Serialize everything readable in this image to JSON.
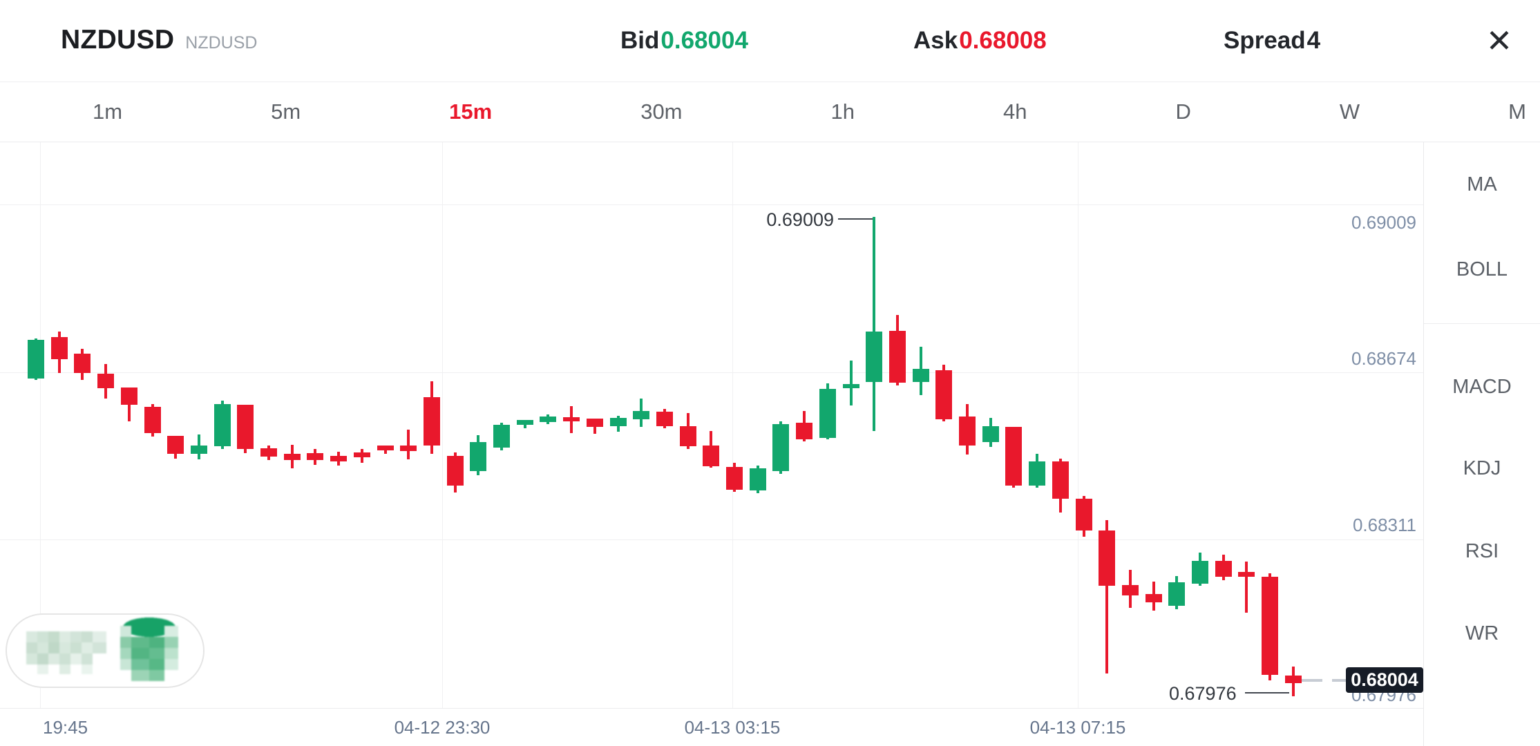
{
  "header": {
    "symbol": "NZDUSD",
    "symbol_secondary": "NZDUSD",
    "bid_label": "Bid",
    "bid_value": "0.68004",
    "ask_label": "Ask",
    "ask_value": "0.68008",
    "spread_label": "Spread",
    "spread_value": "4",
    "close_icon": "✕"
  },
  "timeframe_tabs": {
    "items": [
      "1m",
      "5m",
      "15m",
      "30m",
      "1h",
      "4h",
      "D",
      "W",
      "M"
    ],
    "active": "15m"
  },
  "indicator_panel": {
    "main_indicators": [
      "MA",
      "BOLL"
    ],
    "sub_indicators": [
      "MACD",
      "KDJ",
      "RSI",
      "WR"
    ]
  },
  "chart_data": {
    "type": "candlestick",
    "symbol": "NZDUSD",
    "interval": "15m",
    "up_color": "#12A76D",
    "down_color": "#E9182C",
    "y_axis_labels": [
      "0.69009",
      "0.68674",
      "0.68311",
      "0.67976"
    ],
    "x_axis_labels": [
      "19:45",
      "04-12 23:30",
      "04-13 03:15",
      "04-13 07:15"
    ],
    "high_annotation": "0.69009",
    "low_annotation": "0.67976",
    "current_price_tag": "0.68004",
    "candles": [
      [
        0.68661,
        0.68747,
        0.68658,
        0.68744
      ],
      [
        0.6875,
        0.68762,
        0.68673,
        0.68702
      ],
      [
        0.68714,
        0.68725,
        0.68658,
        0.68673
      ],
      [
        0.68671,
        0.68692,
        0.68617,
        0.6864
      ],
      [
        0.68641,
        0.68641,
        0.68568,
        0.68604
      ],
      [
        0.686,
        0.68606,
        0.68536,
        0.68543
      ],
      [
        0.68537,
        0.68537,
        0.68488,
        0.68498
      ],
      [
        0.68498,
        0.6854,
        0.68487,
        0.68516
      ],
      [
        0.68515,
        0.68613,
        0.68509,
        0.68606
      ],
      [
        0.68604,
        0.68604,
        0.685,
        0.68509
      ],
      [
        0.6851,
        0.68516,
        0.68485,
        0.68492
      ],
      [
        0.68498,
        0.68518,
        0.68467,
        0.68485
      ],
      [
        0.685,
        0.68509,
        0.68475,
        0.68485
      ],
      [
        0.68494,
        0.68503,
        0.68473,
        0.68482
      ],
      [
        0.68501,
        0.68509,
        0.68479,
        0.68491
      ],
      [
        0.68516,
        0.68516,
        0.68498,
        0.68506
      ],
      [
        0.68516,
        0.6855,
        0.68487,
        0.68504
      ],
      [
        0.6862,
        0.68655,
        0.68498,
        0.68516
      ],
      [
        0.68494,
        0.68501,
        0.68415,
        0.6843
      ],
      [
        0.68461,
        0.68539,
        0.68452,
        0.68524
      ],
      [
        0.68512,
        0.68565,
        0.68506,
        0.68561
      ],
      [
        0.68561,
        0.68572,
        0.68553,
        0.68572
      ],
      [
        0.68567,
        0.68583,
        0.68563,
        0.68579
      ],
      [
        0.68577,
        0.68601,
        0.68543,
        0.6857
      ],
      [
        0.68574,
        0.68574,
        0.68542,
        0.68556
      ],
      [
        0.68558,
        0.6858,
        0.68546,
        0.68576
      ],
      [
        0.68573,
        0.68617,
        0.68556,
        0.68591
      ],
      [
        0.68589,
        0.68595,
        0.68553,
        0.68558
      ],
      [
        0.68558,
        0.68587,
        0.68509,
        0.68515
      ],
      [
        0.68516,
        0.68548,
        0.68469,
        0.68472
      ],
      [
        0.6847,
        0.68479,
        0.68417,
        0.68421
      ],
      [
        0.6842,
        0.68473,
        0.68414,
        0.68467
      ],
      [
        0.68461,
        0.68568,
        0.68455,
        0.68563
      ],
      [
        0.68565,
        0.68591,
        0.68525,
        0.6853
      ],
      [
        0.68533,
        0.6865,
        0.6853,
        0.68638
      ],
      [
        0.6864,
        0.68699,
        0.68603,
        0.68649
      ],
      [
        0.68653,
        0.69009,
        0.68548,
        0.68762
      ],
      [
        0.68763,
        0.68797,
        0.68646,
        0.68652
      ],
      [
        0.68653,
        0.68729,
        0.68625,
        0.68681
      ],
      [
        0.68678,
        0.6869,
        0.68568,
        0.68573
      ],
      [
        0.68579,
        0.68606,
        0.68497,
        0.68516
      ],
      [
        0.68524,
        0.68576,
        0.68513,
        0.68558
      ],
      [
        0.68556,
        0.68556,
        0.68426,
        0.6843
      ],
      [
        0.6843,
        0.68498,
        0.68426,
        0.68482
      ],
      [
        0.68482,
        0.68488,
        0.68372,
        0.68402
      ],
      [
        0.68402,
        0.68408,
        0.6832,
        0.68333
      ],
      [
        0.68333,
        0.68356,
        0.68025,
        0.68214
      ],
      [
        0.68216,
        0.68248,
        0.68167,
        0.68193
      ],
      [
        0.68196,
        0.68223,
        0.68161,
        0.68178
      ],
      [
        0.68171,
        0.68235,
        0.68164,
        0.68222
      ],
      [
        0.68219,
        0.68286,
        0.68214,
        0.68268
      ],
      [
        0.68268,
        0.68281,
        0.68226,
        0.68234
      ],
      [
        0.68244,
        0.68266,
        0.68156,
        0.68234
      ],
      [
        0.68234,
        0.68241,
        0.6801,
        0.68022
      ],
      [
        0.68021,
        0.6804,
        0.67976,
        0.68004
      ]
    ]
  }
}
